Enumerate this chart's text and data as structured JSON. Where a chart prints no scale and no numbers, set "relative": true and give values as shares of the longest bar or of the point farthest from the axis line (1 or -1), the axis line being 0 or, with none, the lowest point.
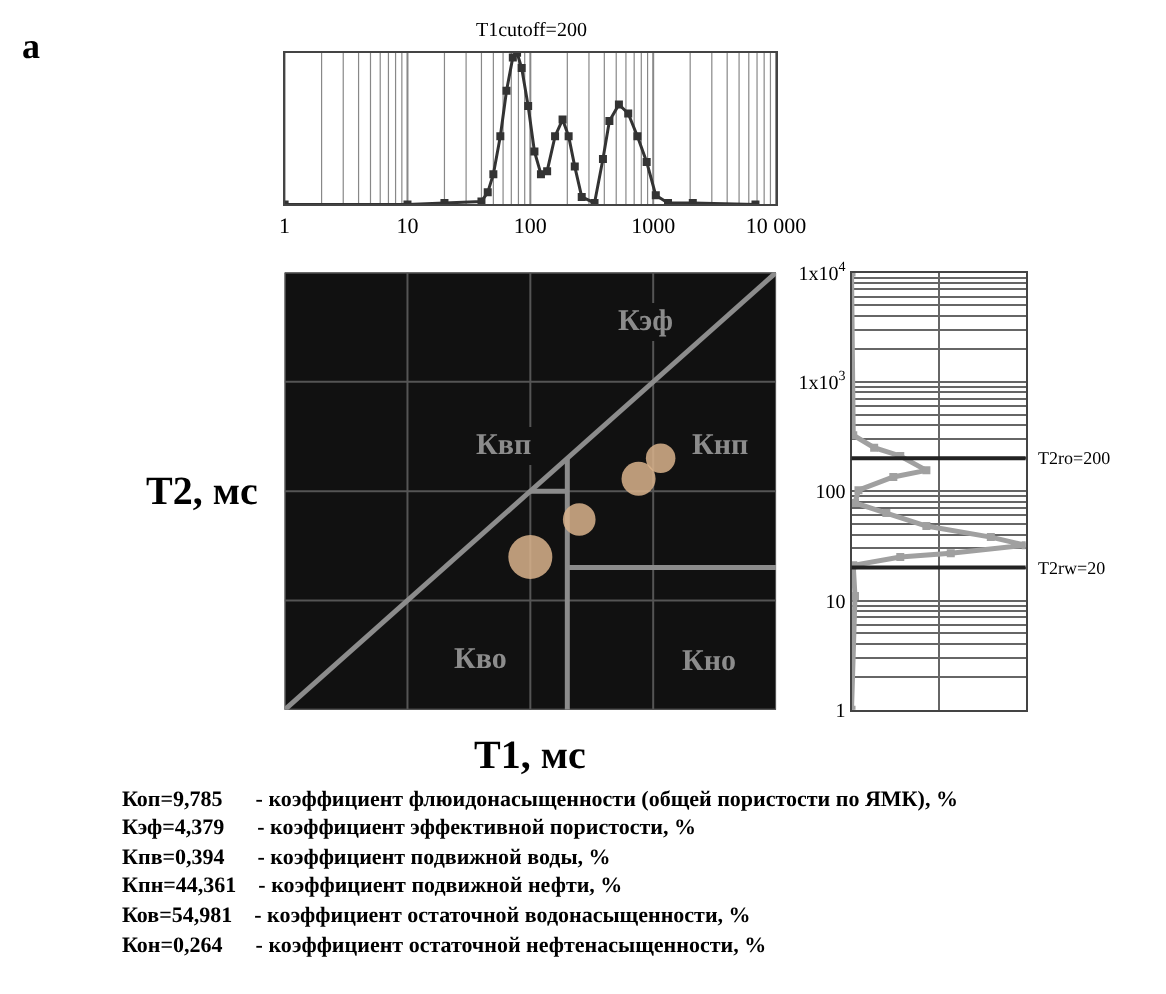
{
  "chart_data": [
    {
      "type": "line",
      "title": "T1cutoff=200",
      "relative": true,
      "log": "x",
      "grid": "x",
      "marker": "square",
      "line_style": "solid",
      "annotations": [
        "а"
      ],
      "xlim": [
        1,
        10000
      ],
      "xticks": [
        1,
        10,
        100,
        1000,
        {
          "value": 10000,
          "label": "10 000"
        }
      ],
      "series": [
        {
          "color": "#333333",
          "x": [
            1,
            10,
            20,
            40,
            45,
            50,
            57,
            64,
            72,
            78,
            85,
            96,
            108,
            122,
            137,
            159,
            183,
            205,
            230,
            262,
            333,
            390,
            440,
            526,
            626,
            744,
            885,
            1050,
            1320,
            2100,
            6800
          ],
          "values": [
            0,
            0,
            0.01,
            0.02,
            0.08,
            0.2,
            0.45,
            0.75,
            0.97,
            1,
            0.9,
            0.65,
            0.35,
            0.2,
            0.22,
            0.45,
            0.56,
            0.45,
            0.25,
            0.05,
            0.01,
            0.3,
            0.55,
            0.66,
            0.6,
            0.45,
            0.28,
            0.06,
            0.01,
            0.01,
            0
          ]
        }
      ]
    },
    {
      "type": "bubble",
      "xlabel": "T1, мс",
      "ylabel": "T2, мс",
      "log": "xy",
      "grid": true,
      "tick_labels": false,
      "xlim": [
        1,
        10000
      ],
      "ylim": [
        1,
        10000
      ],
      "xticks": [
        1,
        10,
        100,
        1000,
        10000
      ],
      "yticks": [
        1,
        10,
        100,
        1000,
        10000
      ],
      "series": [
        {
          "type": "line",
          "color": "#8c8c8c",
          "x": [
            1,
            10000
          ],
          "values": [
            1,
            10000
          ]
        },
        {
          "type": "line",
          "color": "#8c8c8c",
          "x": [
            200,
            10000
          ],
          "values": [
            20,
            20
          ]
        },
        {
          "type": "line",
          "color": "#8c8c8c",
          "x": [
            100,
            200
          ],
          "values": [
            100,
            100
          ]
        },
        {
          "type": "line",
          "color": "#8c8c8c",
          "x": [
            200,
            200
          ],
          "values": [
            1,
            200
          ]
        },
        {
          "color": "#d9b38c",
          "x": [
            100,
            250,
            760,
            1150
          ],
          "values": [
            25,
            55,
            130,
            200
          ],
          "sizes": [
            1,
            0.55,
            0.6,
            0.45
          ]
        }
      ],
      "annotations": [
        "Кэф",
        "Квп",
        "Кнп",
        "Кво",
        "Кно"
      ]
    },
    {
      "type": "line",
      "relative": true,
      "log": "y",
      "grid": true,
      "marker": "square",
      "line_style": "solid",
      "orientation": "horizontal",
      "ylim": [
        1,
        10000
      ],
      "yticks": [
        1,
        10,
        100,
        {
          "value": 1000,
          "label": "1x10$^{3}$"
        },
        {
          "value": 10000,
          "label": "1x10$^{4}$"
        }
      ],
      "ref_lines": [
        {
          "axis": "y",
          "value": 200,
          "label": "T2ro=200",
          "color": "#222222"
        },
        {
          "axis": "y",
          "value": 20,
          "label": "T2rw=20",
          "color": "#222222"
        }
      ],
      "series": [
        {
          "color": "#a0a0a0",
          "x": [
            10000,
            325,
            250,
            210,
            155,
            135,
            102,
            78,
            63,
            48,
            38,
            32,
            27,
            25,
            21,
            11,
            1
          ],
          "values": [
            0,
            0.01,
            0.13,
            0.28,
            0.43,
            0.24,
            0.04,
            0.02,
            0.2,
            0.43,
            0.8,
            1,
            0.57,
            0.28,
            0.01,
            0.02,
            0
          ]
        }
      ]
    },
    {
      "type": "other",
      "annotations": [
        "Коп=9,785      - коэффициент флюидонасыщенности (общей пористости по ЯМК), %",
        "Кэф=4,379      - коэффициент эффективной пористости, %",
        "Кпв=0,394      - коэффициент подвижной воды, %",
        "Кпн=44,361    - коэффициент подвижной нефти, %",
        "Ков=54,981    - коэффициент остаточной водонасыщенности, %",
        "Кон=0,264      - коэффициент остаточной нефтенасыщенности, %"
      ]
    }
  ]
}
